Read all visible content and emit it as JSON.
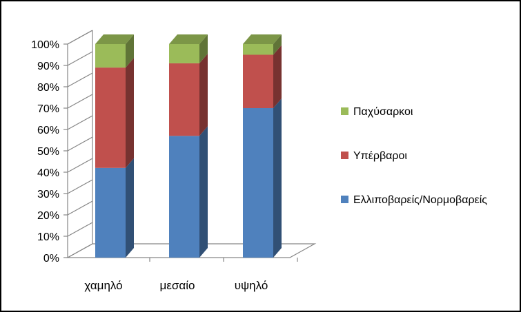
{
  "chart_data": {
    "type": "bar",
    "stacked": true,
    "percent_stacked": true,
    "three_d": true,
    "title": "",
    "xlabel": "",
    "ylabel": "",
    "categories": [
      "χαμηλό",
      "μεσαίο",
      "υψηλό"
    ],
    "series": [
      {
        "name": "Ελλιποβαρείς/Νορμοβαρείς",
        "color": "#4f81bd",
        "values": [
          42,
          57,
          70
        ]
      },
      {
        "name": "Υπέρβαροι",
        "color": "#c0504d",
        "values": [
          47,
          34,
          25
        ]
      },
      {
        "name": "Παχύσαρκοι",
        "color": "#9bbb59",
        "values": [
          11,
          9,
          5
        ]
      }
    ],
    "ylim": [
      0,
      100
    ],
    "yticks": [
      "0%",
      "10%",
      "20%",
      "30%",
      "40%",
      "50%",
      "60%",
      "70%",
      "80%",
      "90%",
      "100%"
    ],
    "grid": false,
    "legend_position": "right"
  }
}
